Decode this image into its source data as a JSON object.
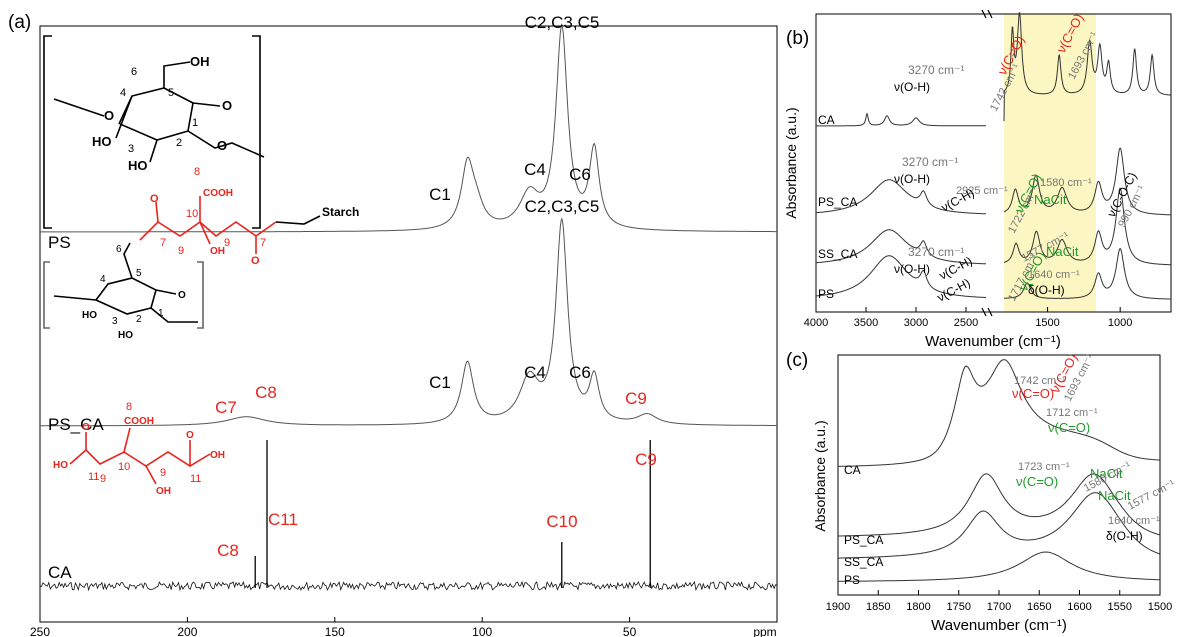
{
  "panels": {
    "a": {
      "label": "(a)"
    },
    "b": {
      "label": "(b)"
    },
    "c": {
      "label": "(c)"
    }
  },
  "nmr_molecule_labels": {
    "starch": "Starch",
    "oh": "OH",
    "ho": "HO",
    "o": "O",
    "cooh": "COOH"
  },
  "chart_data": [
    {
      "type": "line",
      "id": "a",
      "xlabel": "ppm",
      "xlim": [
        250,
        0
      ],
      "x_ticks": [
        "250",
        "200",
        "150",
        "100",
        "50",
        "ppm"
      ],
      "series": [
        {
          "name": "PS",
          "peaks": [
            {
              "label": "C1",
              "x": 105
            },
            {
              "label": "C4",
              "x": 84
            },
            {
              "label": "C2,C3,C5",
              "x": 73
            },
            {
              "label": "C6",
              "x": 62
            }
          ]
        },
        {
          "name": "PS_CA",
          "peaks": [
            {
              "label": "C7",
              "x": 182,
              "color": "red"
            },
            {
              "label": "C8",
              "x": 172,
              "color": "red"
            },
            {
              "label": "C1",
              "x": 105
            },
            {
              "label": "C4",
              "x": 84
            },
            {
              "label": "C2,C3,C5",
              "x": 73
            },
            {
              "label": "C6",
              "x": 62
            },
            {
              "label": "C9",
              "x": 44,
              "color": "red"
            }
          ]
        },
        {
          "name": "CA",
          "peaks": [
            {
              "label": "C8",
              "x": 177,
              "color": "red"
            },
            {
              "label": "C11",
              "x": 173,
              "color": "red"
            },
            {
              "label": "C10",
              "x": 73,
              "color": "red"
            },
            {
              "label": "C9",
              "x": 43,
              "color": "red"
            }
          ]
        }
      ]
    },
    {
      "type": "line",
      "id": "b",
      "xlabel": "Wavenumber (cm⁻¹)",
      "ylabel": "Absorbance (a.u.)",
      "x_ticks": [
        "4000",
        "3500",
        "3000",
        "2500",
        "1500",
        "1000"
      ],
      "series": [
        {
          "name": "CA"
        },
        {
          "name": "PS_CA"
        },
        {
          "name": "SS_CA"
        },
        {
          "name": "PS"
        }
      ],
      "annotations": [
        {
          "text": "3270 cm⁻¹",
          "color": "gray"
        },
        {
          "text": "ν(O-H)",
          "color": "black"
        },
        {
          "text": "ν(C=O)",
          "color": "red"
        },
        {
          "text": "1742 cm⁻¹",
          "color": "gray"
        },
        {
          "text": "ν(C=O)",
          "color": "red"
        },
        {
          "text": "1693 cm⁻¹",
          "color": "gray"
        },
        {
          "text": "3270 cm⁻¹",
          "color": "gray"
        },
        {
          "text": "ν(O-H)",
          "color": "black"
        },
        {
          "text": "2925 cm⁻¹",
          "color": "gray"
        },
        {
          "text": "ν(C-H)",
          "color": "black"
        },
        {
          "text": "1722 cm⁻¹",
          "color": "gray"
        },
        {
          "text": "ν(C=O)",
          "color": "green"
        },
        {
          "text": "NaCit",
          "color": "green"
        },
        {
          "text": "1580 cm⁻¹",
          "color": "gray"
        },
        {
          "text": "ν(C-O-C)",
          "color": "black"
        },
        {
          "text": "990 cm⁻¹",
          "color": "gray"
        },
        {
          "text": "3270 cm⁻¹",
          "color": "gray"
        },
        {
          "text": "ν(O-H)",
          "color": "black"
        },
        {
          "text": "ν(C-H)",
          "color": "black"
        },
        {
          "text": "1577 cm⁻¹",
          "color": "gray"
        },
        {
          "text": "NaCit",
          "color": "green"
        },
        {
          "text": "ν(C=O)",
          "color": "green"
        },
        {
          "text": "1717 cm⁻¹",
          "color": "gray"
        },
        {
          "text": "ν(C-H)",
          "color": "black"
        },
        {
          "text": "1640 cm⁻¹",
          "color": "gray"
        },
        {
          "text": "δ(O-H)",
          "color": "black"
        }
      ]
    },
    {
      "type": "line",
      "id": "c",
      "xlabel": "Wavenumber (cm⁻¹)",
      "ylabel": "Absorbance (a.u.)",
      "xlim": [
        1900,
        1500
      ],
      "x_ticks": [
        "1900",
        "1850",
        "1800",
        "1750",
        "1700",
        "1650",
        "1600",
        "1550",
        "1500"
      ],
      "series": [
        {
          "name": "CA"
        },
        {
          "name": "PS_CA"
        },
        {
          "name": "SS_CA"
        },
        {
          "name": "PS"
        }
      ],
      "annotations": [
        {
          "text": "1742 cm⁻¹",
          "color": "gray"
        },
        {
          "text": "ν(C=O)",
          "color": "red"
        },
        {
          "text": "ν(C=O)",
          "color": "red"
        },
        {
          "text": "1693 cm⁻¹",
          "color": "gray"
        },
        {
          "text": "1712 cm⁻¹",
          "color": "gray"
        },
        {
          "text": "ν(C=O)",
          "color": "green"
        },
        {
          "text": "NaCit",
          "color": "green"
        },
        {
          "text": "1580 cm⁻¹",
          "color": "gray"
        },
        {
          "text": "1723 cm⁻¹",
          "color": "gray"
        },
        {
          "text": "ν(C=O)",
          "color": "green"
        },
        {
          "text": "NaCit",
          "color": "green"
        },
        {
          "text": "1577 cm⁻¹",
          "color": "gray"
        },
        {
          "text": "1640 cm⁻¹",
          "color": "gray"
        },
        {
          "text": "δ(O-H)",
          "color": "black"
        }
      ]
    }
  ]
}
